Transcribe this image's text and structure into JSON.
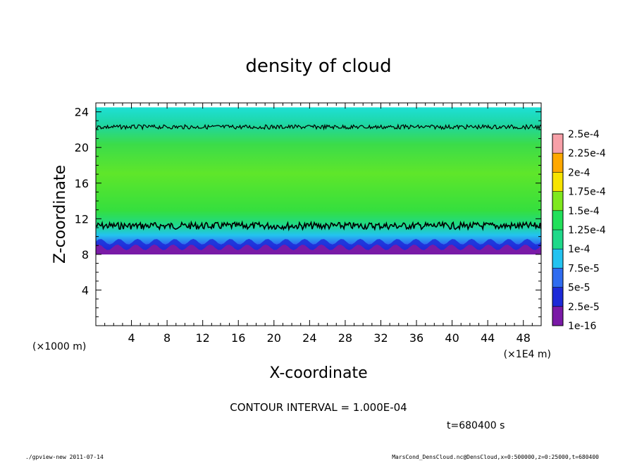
{
  "chart_data": {
    "type": "heatmap",
    "title": "density of cloud",
    "xlabel": "X-coordinate",
    "ylabel": "Z-coordinate",
    "x_unit": "(×1E4 m)",
    "y_unit": "(×1000 m)",
    "xlim": [
      0,
      50
    ],
    "ylim": [
      0,
      25
    ],
    "x_ticks": [
      "4",
      "8",
      "12",
      "16",
      "20",
      "24",
      "28",
      "32",
      "36",
      "40",
      "44",
      "48"
    ],
    "x_tick_values": [
      4,
      8,
      12,
      16,
      20,
      24,
      28,
      32,
      36,
      40,
      44,
      48
    ],
    "y_ticks": [
      "4",
      "8",
      "12",
      "16",
      "20",
      "24"
    ],
    "y_tick_values": [
      4,
      8,
      12,
      16,
      20,
      24
    ],
    "cloud_layer": {
      "z_bottom": 8.0,
      "z_top": 24.5
    },
    "contour_lines_z": [
      11.2,
      22.3
    ],
    "colorbar": {
      "labels": [
        "1e-16",
        "2.5e-5",
        "5e-5",
        "7.5e-5",
        "1e-4",
        "1.25e-4",
        "1.5e-4",
        "1.75e-4",
        "2e-4",
        "2.25e-4",
        "2.5e-4"
      ],
      "colors": [
        "#7a1aa6",
        "#1d2ad8",
        "#2f6cf0",
        "#23c3f0",
        "#1fd98a",
        "#22e05a",
        "#7fe81e",
        "#f7e400",
        "#ffa800",
        "#f34b17",
        "#f7a0a8"
      ]
    },
    "annotations": {
      "contour_interval": "CONTOUR INTERVAL = 1.000E-04",
      "time": "t=680400 s"
    }
  },
  "footer": {
    "left": "./gpview-new  2011-07-14",
    "right": "MarsCond_DensCloud.nc@DensCloud,x=0:500000,z=0:25000,t=680400"
  }
}
